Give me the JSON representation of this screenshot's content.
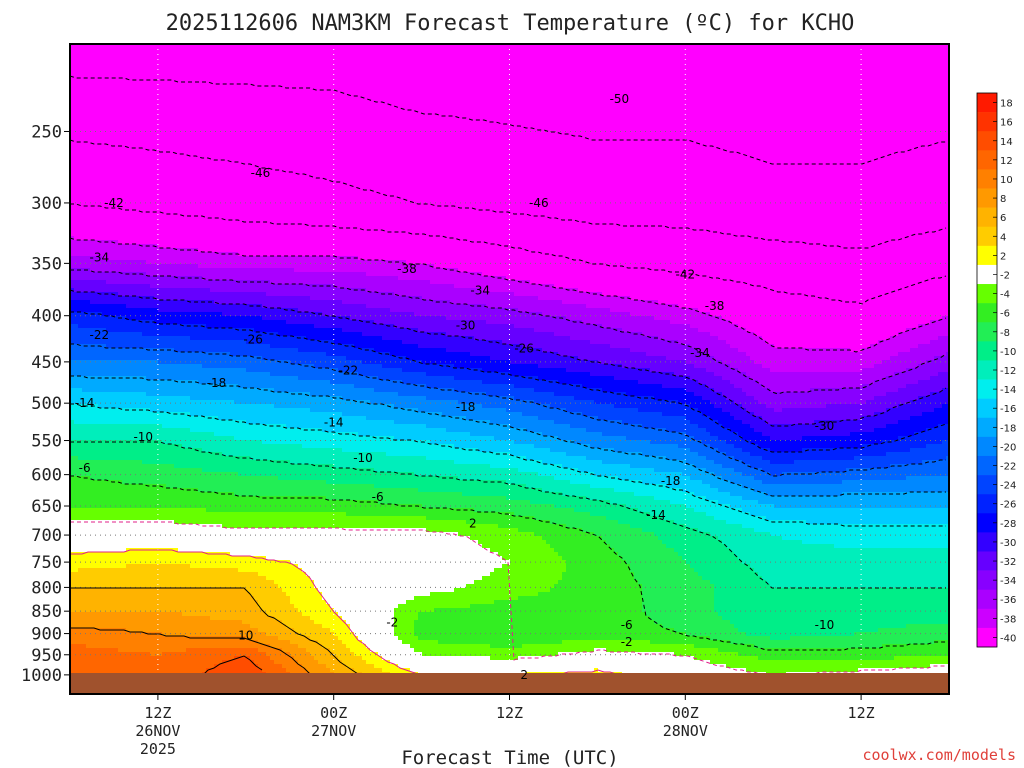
{
  "chart_data": {
    "type": "heatmap",
    "title": "2025112606 NAM3KM Forecast Temperature (ºC) for KCHO",
    "xlabel": "Forecast Time (UTC)",
    "ylabel": "",
    "y_scale": "log",
    "y_inverted": true,
    "y_ticks": [
      250,
      300,
      350,
      400,
      450,
      500,
      550,
      600,
      650,
      700,
      750,
      800,
      850,
      900,
      950,
      1000
    ],
    "x_range_hours": [
      0,
      60
    ],
    "x_ticks": [
      {
        "hour": 6,
        "lines": [
          "12Z",
          "26NOV",
          "2025"
        ]
      },
      {
        "hour": 18,
        "lines": [
          "00Z",
          "27NOV",
          ""
        ]
      },
      {
        "hour": 30,
        "lines": [
          "12Z",
          "",
          ""
        ]
      },
      {
        "hour": 42,
        "lines": [
          "00Z",
          "28NOV",
          ""
        ]
      },
      {
        "hour": 54,
        "lines": [
          "12Z",
          "",
          ""
        ]
      }
    ],
    "colorbar": {
      "levels": [
        18,
        16,
        14,
        12,
        10,
        8,
        6,
        4,
        2,
        -2,
        -4,
        -6,
        -8,
        -10,
        -12,
        -14,
        -16,
        -18,
        -20,
        -22,
        -24,
        -26,
        -28,
        -30,
        -32,
        -34,
        -36,
        -38,
        -40
      ],
      "labels": [
        "18",
        "16",
        "14",
        "12",
        "10",
        "8",
        "6",
        "4",
        "2",
        "-2",
        "-4",
        "-6",
        "-8",
        "-10",
        "-12",
        "-14",
        "-16",
        "-18",
        "-20",
        "-22",
        "-24",
        "-26",
        "-28",
        "-30",
        "-32",
        "-34",
        "-36",
        "-38",
        "-40"
      ],
      "colors": [
        "#ff1a00",
        "#ff3300",
        "#ff4d00",
        "#ff6600",
        "#ff8000",
        "#ff9900",
        "#ffb300",
        "#ffcc00",
        "#ffff00",
        "#ffffff",
        "#66ff00",
        "#33ee22",
        "#22ee55",
        "#00ee88",
        "#00eebb",
        "#00eeee",
        "#00ccff",
        "#00aaff",
        "#0088ff",
        "#0066ff",
        "#0044ff",
        "#0022ff",
        "#0000ff",
        "#3300ff",
        "#6600ff",
        "#8800ff",
        "#aa00ff",
        "#cc00ff",
        "#ff00ff"
      ]
    },
    "profiles": [
      {
        "hour": 0,
        "p": [
          200,
          300,
          350,
          400,
          450,
          500,
          550,
          600,
          650,
          700,
          750,
          800,
          850,
          900,
          950,
          1000
        ],
        "t": [
          -52,
          -42,
          -35,
          -25,
          -20,
          -14,
          -10,
          -6,
          -4,
          0,
          3,
          6,
          8,
          11,
          13,
          13
        ]
      },
      {
        "hour": 6,
        "p": [
          200,
          300,
          350,
          400,
          450,
          500,
          550,
          600,
          650,
          700,
          750,
          800,
          850,
          900,
          950,
          1000
        ],
        "t": [
          -52,
          -43,
          -36,
          -27,
          -20,
          -15,
          -10,
          -7,
          -4,
          0,
          4,
          6,
          8,
          10,
          12,
          12
        ]
      },
      {
        "hour": 12,
        "p": [
          200,
          300,
          350,
          400,
          450,
          500,
          550,
          600,
          650,
          700,
          750,
          800,
          850,
          900,
          950,
          1000
        ],
        "t": [
          -52,
          -44,
          -37,
          -28,
          -21,
          -16,
          -12,
          -8,
          -5,
          -1,
          3,
          6,
          7,
          9,
          14,
          16
        ]
      },
      {
        "hour": 18,
        "p": [
          200,
          300,
          350,
          400,
          450,
          500,
          550,
          600,
          650,
          700,
          750,
          800,
          850,
          900,
          950,
          1000
        ],
        "t": [
          -52,
          -45,
          -37,
          -30,
          -23,
          -17,
          -13,
          -9,
          -5,
          -1,
          1,
          1,
          2,
          4,
          6,
          8
        ]
      },
      {
        "hour": 24,
        "p": [
          200,
          300,
          350,
          400,
          450,
          500,
          550,
          600,
          650,
          700,
          750,
          800,
          850,
          900,
          950,
          1000
        ],
        "t": [
          -53,
          -46,
          -38,
          -32,
          -26,
          -19,
          -14,
          -10,
          -6,
          -1,
          0,
          -1,
          -4,
          -5,
          -2,
          2
        ]
      },
      {
        "hour": 30,
        "p": [
          200,
          300,
          350,
          400,
          450,
          500,
          550,
          600,
          650,
          700,
          750,
          800,
          850,
          900,
          950,
          1000
        ],
        "t": [
          -53,
          -47,
          -40,
          -33,
          -28,
          -21,
          -16,
          -11,
          -7,
          -3,
          -2,
          -3,
          -5,
          -6,
          -3,
          2
        ]
      },
      {
        "hour": 36,
        "p": [
          200,
          300,
          350,
          400,
          450,
          500,
          550,
          600,
          650,
          700,
          750,
          800,
          850,
          900,
          950,
          1000
        ],
        "t": [
          -53,
          -48,
          -42,
          -35,
          -30,
          -24,
          -19,
          -14,
          -9,
          -6,
          -5,
          -5,
          -5,
          -5,
          -1,
          3
        ]
      },
      {
        "hour": 42,
        "p": [
          200,
          300,
          350,
          400,
          450,
          500,
          550,
          600,
          650,
          700,
          750,
          800,
          850,
          900,
          950,
          1000
        ],
        "t": [
          -53,
          -48,
          -43,
          -37,
          -32,
          -26,
          -21,
          -16,
          -12,
          -9,
          -8,
          -7,
          -7,
          -6,
          -2,
          0
        ]
      },
      {
        "hour": 48,
        "p": [
          200,
          300,
          350,
          400,
          450,
          500,
          550,
          600,
          650,
          700,
          750,
          800,
          850,
          900,
          950,
          1000
        ],
        "t": [
          -53,
          -49,
          -44,
          -40,
          -37,
          -33,
          -28,
          -22,
          -16,
          -12,
          -11,
          -10,
          -10,
          -9,
          -5,
          -2
        ]
      },
      {
        "hour": 54,
        "p": [
          200,
          300,
          350,
          400,
          450,
          500,
          550,
          600,
          650,
          700,
          750,
          800,
          850,
          900,
          950,
          1000
        ],
        "t": [
          -53,
          -49,
          -45,
          -41,
          -37,
          -32,
          -27,
          -21,
          -16,
          -13,
          -11,
          -10,
          -9,
          -8,
          -5,
          -1
        ]
      },
      {
        "hour": 60,
        "p": [
          200,
          300,
          350,
          400,
          450,
          500,
          550,
          600,
          650,
          700,
          750,
          800,
          850,
          900,
          950,
          1000
        ],
        "t": [
          -53,
          -48,
          -43,
          -38,
          -33,
          -28,
          -24,
          -20,
          -16,
          -13,
          -11,
          -10,
          -9,
          -7,
          -4,
          0
        ]
      }
    ],
    "contour_labels": [
      {
        "text": "-50",
        "hour": 37.5,
        "p": 230
      },
      {
        "text": "-46",
        "hour": 13,
        "p": 278
      },
      {
        "text": "-46",
        "hour": 32,
        "p": 300
      },
      {
        "text": "-42",
        "hour": 3,
        "p": 300
      },
      {
        "text": "-42",
        "hour": 42,
        "p": 360
      },
      {
        "text": "-38",
        "hour": 23,
        "p": 355
      },
      {
        "text": "-38",
        "hour": 44,
        "p": 390
      },
      {
        "text": "-34",
        "hour": 2,
        "p": 345
      },
      {
        "text": "-34",
        "hour": 28,
        "p": 375
      },
      {
        "text": "-34",
        "hour": 43,
        "p": 440
      },
      {
        "text": "-30",
        "hour": 27,
        "p": 410
      },
      {
        "text": "-30",
        "hour": 51.5,
        "p": 530
      },
      {
        "text": "-26",
        "hour": 12.5,
        "p": 425
      },
      {
        "text": "-26",
        "hour": 31,
        "p": 435
      },
      {
        "text": "-22",
        "hour": 2,
        "p": 420
      },
      {
        "text": "-22",
        "hour": 19,
        "p": 460
      },
      {
        "text": "-18",
        "hour": 10,
        "p": 475
      },
      {
        "text": "-18",
        "hour": 27,
        "p": 505
      },
      {
        "text": "-18",
        "hour": 41,
        "p": 610
      },
      {
        "text": "-14",
        "hour": 1,
        "p": 500
      },
      {
        "text": "-14",
        "hour": 18,
        "p": 525
      },
      {
        "text": "-14",
        "hour": 40,
        "p": 665
      },
      {
        "text": "-10",
        "hour": 5,
        "p": 545
      },
      {
        "text": "-10",
        "hour": 20,
        "p": 575
      },
      {
        "text": "-10",
        "hour": 51.5,
        "p": 880
      },
      {
        "text": "-6",
        "hour": 1,
        "p": 590
      },
      {
        "text": "-6",
        "hour": 21,
        "p": 635
      },
      {
        "text": "-6",
        "hour": 38,
        "p": 880
      },
      {
        "text": "2",
        "hour": 27.5,
        "p": 680
      },
      {
        "text": "-2",
        "hour": 22,
        "p": 875
      },
      {
        "text": "-2",
        "hour": 38,
        "p": 920
      },
      {
        "text": "10",
        "hour": 12,
        "p": 905
      },
      {
        "text": "2",
        "hour": 31,
        "p": 1000
      }
    ]
  },
  "footer": {
    "credit": "coolwx.com/models"
  }
}
